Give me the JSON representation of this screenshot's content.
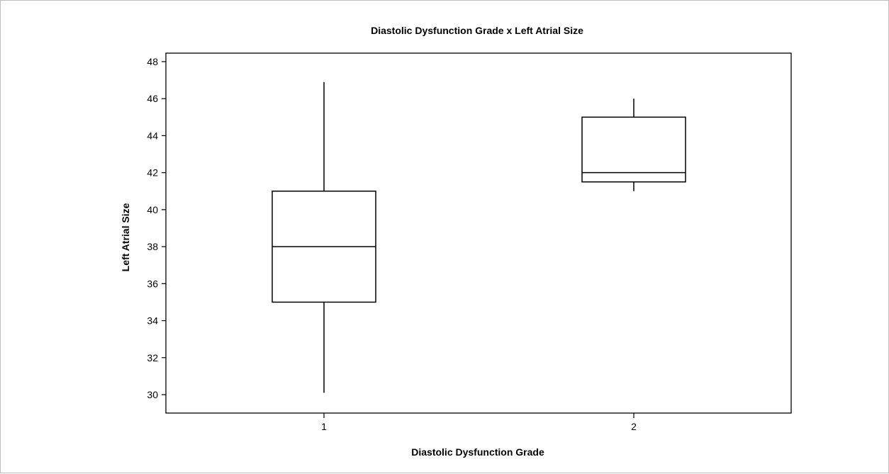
{
  "chart_data": {
    "type": "box",
    "title": "Diastolic Dysfunction Grade x Left Atrial Size",
    "xlabel": "Diastolic Dysfunction Grade",
    "ylabel": "Left Atrial Size",
    "categories": [
      "1",
      "2"
    ],
    "ylim": [
      29,
      48.5
    ],
    "yticks": [
      30,
      32,
      34,
      36,
      38,
      40,
      42,
      44,
      46,
      48
    ],
    "ytick_labels": [
      "30",
      "32",
      "34",
      "36",
      "38",
      "40",
      "42",
      "44",
      "46",
      "48"
    ],
    "xlim": [
      0.5,
      2.5
    ],
    "grid": false,
    "legend": "none",
    "boxes": [
      {
        "category": "1",
        "whisker_low": 30.1,
        "q1": 35,
        "median": 38,
        "q3": 41,
        "whisker_high": 46.9
      },
      {
        "category": "2",
        "whisker_low": 41,
        "q1": 41.5,
        "median": 42,
        "q3": 45,
        "whisker_high": 46
      }
    ]
  }
}
